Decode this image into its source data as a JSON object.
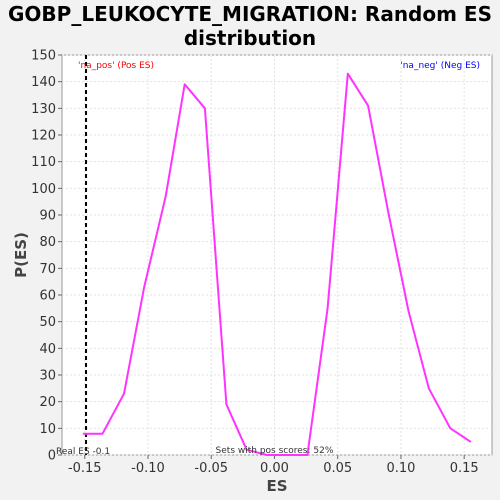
{
  "chart_data": {
    "type": "line",
    "title_line1": "GOBP_LEUKOCYTE_MIGRATION: Random ES",
    "title_line2": "distribution",
    "xlabel": "ES",
    "ylabel": "P(ES)",
    "xlim": [
      -0.168,
      0.172
    ],
    "ylim": [
      0,
      150
    ],
    "xticks": [
      -0.15,
      -0.1,
      -0.05,
      0.0,
      0.05,
      0.1,
      0.15
    ],
    "xtick_labels": [
      "-0.15",
      "-0.10",
      "-0.05",
      "0.00",
      "0.05",
      "0.10",
      "0.15"
    ],
    "yticks": [
      0,
      10,
      20,
      30,
      40,
      50,
      60,
      70,
      80,
      90,
      100,
      110,
      120,
      130,
      140,
      150
    ],
    "grid": true,
    "series": [
      {
        "color": "#ff33ff",
        "x": [
          -0.151,
          -0.136,
          -0.119,
          -0.103,
          -0.086,
          -0.071,
          -0.055,
          -0.038,
          -0.022,
          -0.006,
          0.01,
          0.026,
          0.042,
          0.058,
          0.074,
          0.09,
          0.106,
          0.122,
          0.139,
          0.155
        ],
        "y": [
          8,
          8,
          23,
          63,
          97,
          139,
          130,
          19,
          2,
          0,
          0,
          0,
          55,
          143,
          131,
          91,
          54,
          25,
          10,
          5
        ]
      }
    ],
    "real_es": -0.149,
    "annotations": {
      "pos_label": "'na_pos' (Pos ES)",
      "neg_label": "'na_neg' (Neg ES)",
      "real_es_label": "Real ES -0.1",
      "sets_label": "Sets with pos scores: 52%"
    },
    "colors": {
      "pos": "#ff0000",
      "neg": "#0000ff",
      "line": "#ff33ff",
      "real_es_line": "#000000"
    }
  }
}
